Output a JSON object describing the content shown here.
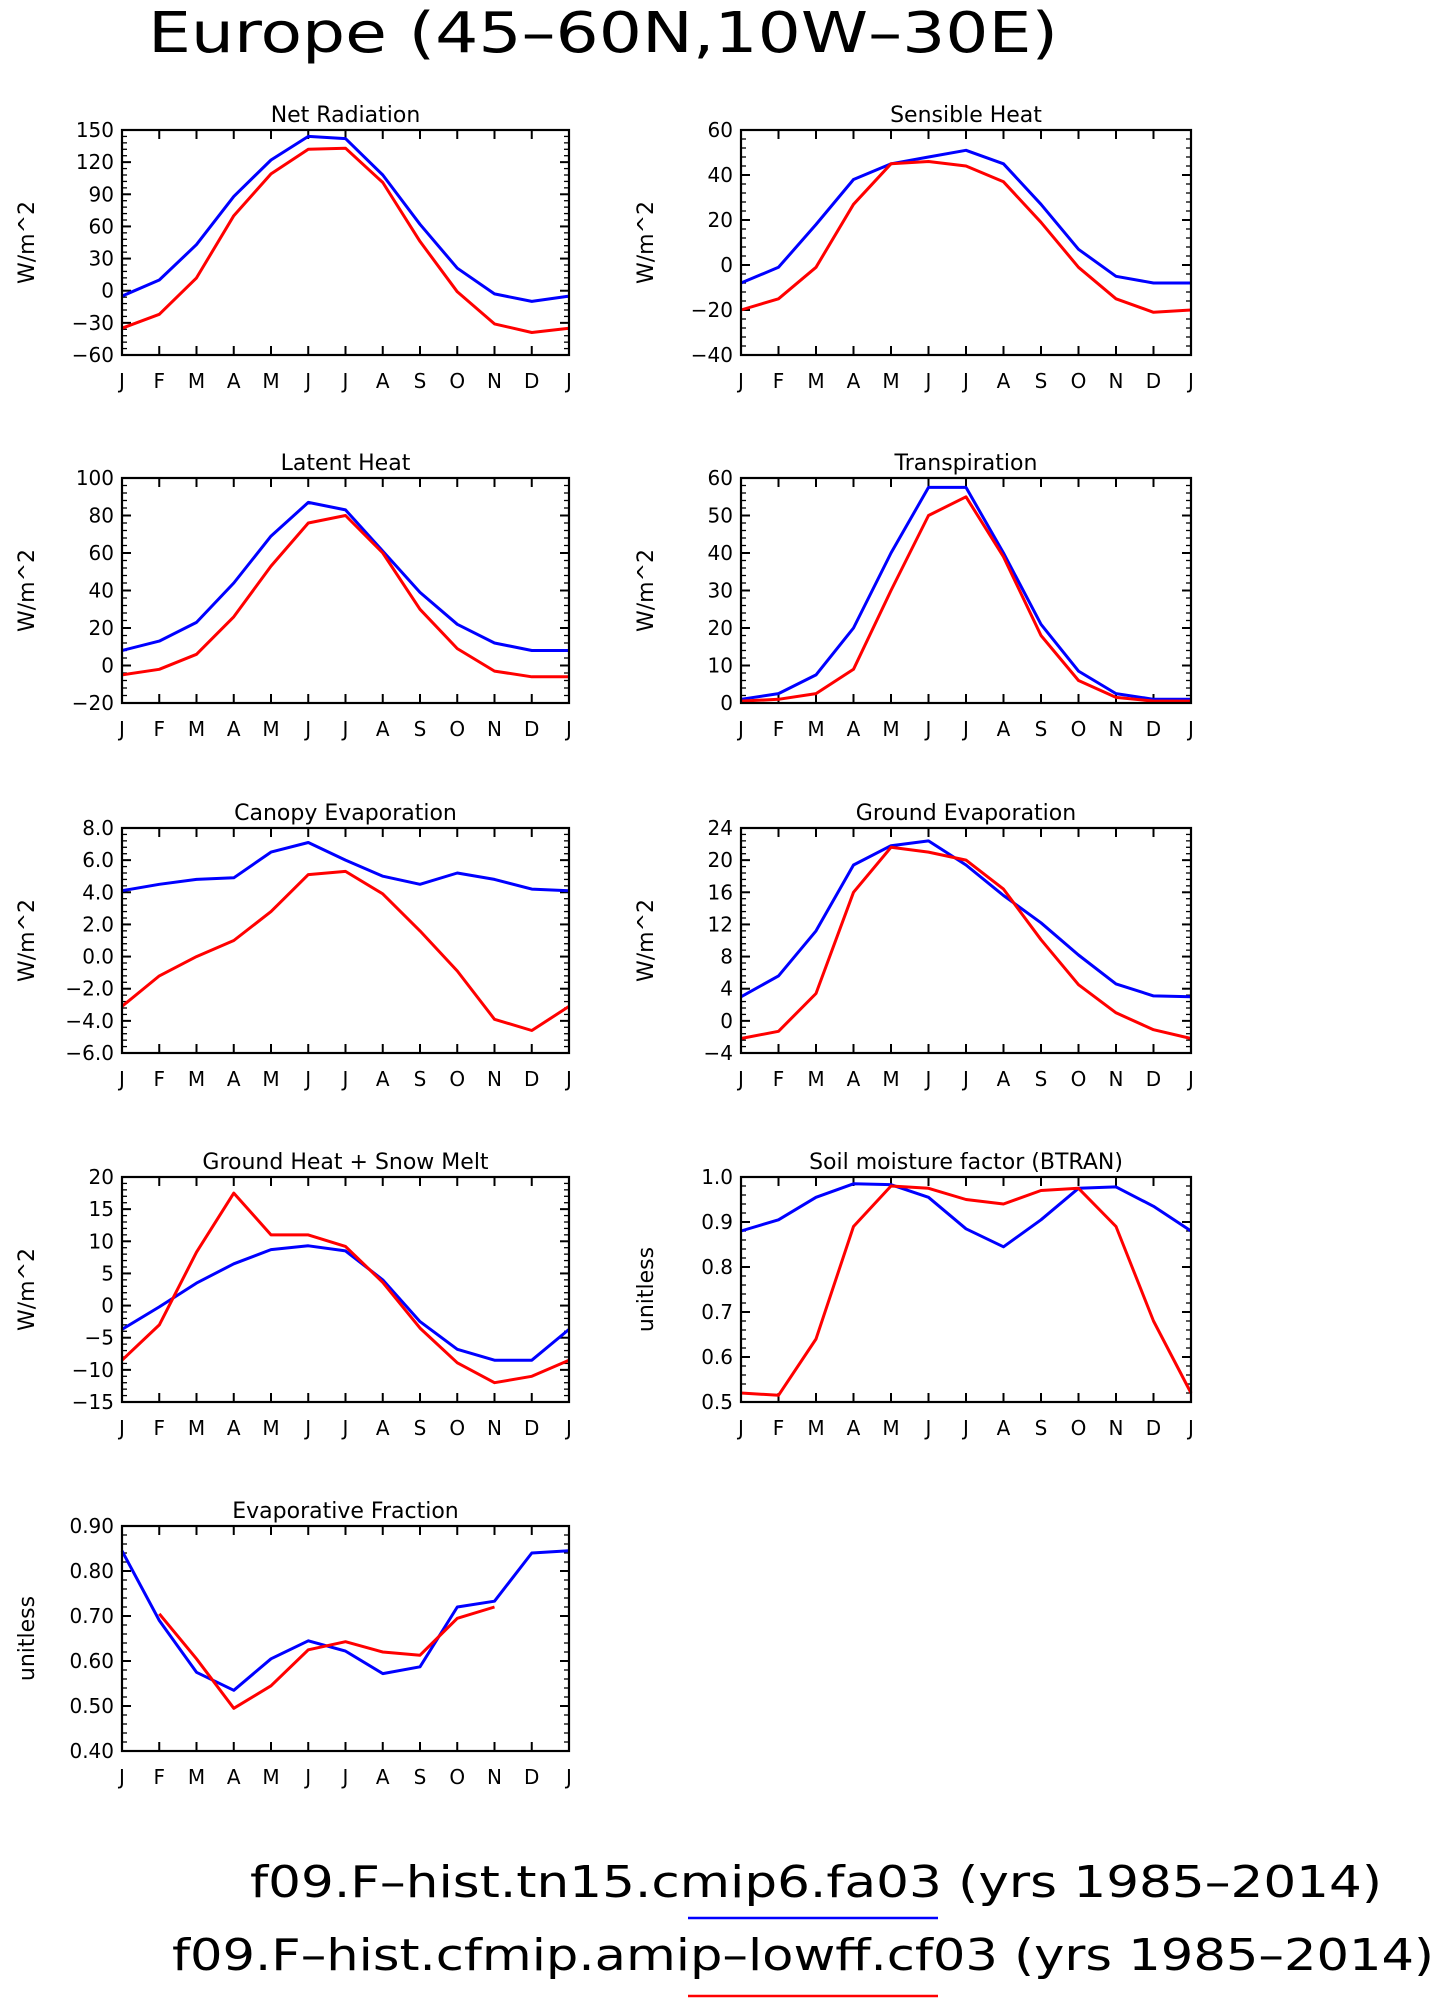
{
  "figure_title": "Europe (45–60N,10W–30E)",
  "months": [
    "J",
    "F",
    "M",
    "A",
    "M",
    "J",
    "J",
    "A",
    "S",
    "O",
    "N",
    "D",
    "J"
  ],
  "legend": [
    {
      "text": "f09.F–hist.tn15.cmip6.fa03 (yrs 1985–2014)",
      "color": "#0000ff"
    },
    {
      "text": "f09.F–hist.cfmip.amip–lowff.cf03 (yrs 1985–2014)",
      "color": "#ff0000"
    }
  ],
  "colors": {
    "blue": "#0000ff",
    "red": "#ff0000"
  },
  "chart_data": [
    {
      "type": "line",
      "title": "Net Radiation",
      "ylabel": "W/m^2",
      "ylim": [
        -60,
        150
      ],
      "yticks": [
        -60,
        -30,
        0,
        30,
        60,
        90,
        120,
        150
      ],
      "ytick_labels": [
        "−60",
        "−30",
        "0",
        "30",
        "60",
        "90",
        "120",
        "150"
      ],
      "series": [
        {
          "color": "#0000ff",
          "values": [
            -5,
            10,
            43,
            88,
            122,
            144,
            142,
            108,
            62,
            21,
            -3,
            -10,
            -5
          ]
        },
        {
          "color": "#ff0000",
          "values": [
            -35,
            -22,
            12,
            70,
            109,
            132,
            133,
            101,
            46,
            -1,
            -31,
            -39,
            -35
          ]
        }
      ]
    },
    {
      "type": "line",
      "title": "Sensible Heat",
      "ylabel": "W/m^2",
      "ylim": [
        -40,
        60
      ],
      "yticks": [
        -40,
        -20,
        0,
        20,
        40,
        60
      ],
      "ytick_labels": [
        "−40",
        "−20",
        "0",
        "20",
        "40",
        "60"
      ],
      "series": [
        {
          "color": "#0000ff",
          "values": [
            -8,
            -1,
            18,
            38,
            45,
            48,
            51,
            45,
            27,
            7,
            -5,
            -8,
            -8
          ]
        },
        {
          "color": "#ff0000",
          "values": [
            -20,
            -15,
            -1,
            27,
            45,
            46,
            44,
            37,
            19,
            -1,
            -15,
            -21,
            -20
          ]
        }
      ]
    },
    {
      "type": "line",
      "title": "Latent Heat",
      "ylabel": "W/m^2",
      "ylim": [
        -20,
        100
      ],
      "yticks": [
        -20,
        0,
        20,
        40,
        60,
        80,
        100
      ],
      "ytick_labels": [
        "−20",
        "0",
        "20",
        "40",
        "60",
        "80",
        "100"
      ],
      "series": [
        {
          "color": "#0000ff",
          "values": [
            8,
            13,
            23,
            44,
            69,
            87,
            83,
            61,
            39,
            22,
            12,
            8,
            8
          ]
        },
        {
          "color": "#ff0000",
          "values": [
            -5,
            -2,
            6,
            26,
            53,
            76,
            80,
            60,
            30,
            9,
            -3,
            -6,
            -6
          ]
        }
      ]
    },
    {
      "type": "line",
      "title": "Transpiration",
      "ylabel": "W/m^2",
      "ylim": [
        0,
        60
      ],
      "yticks": [
        0,
        10,
        20,
        30,
        40,
        50,
        60
      ],
      "ytick_labels": [
        "0",
        "10",
        "20",
        "30",
        "40",
        "50",
        "60"
      ],
      "series": [
        {
          "color": "#0000ff",
          "values": [
            1,
            2.5,
            7.5,
            20,
            40,
            57.5,
            57.5,
            40,
            21,
            8.5,
            2.5,
            1,
            1
          ]
        },
        {
          "color": "#ff0000",
          "values": [
            0.5,
            1,
            2.5,
            9,
            30,
            50,
            55,
            39,
            18,
            6,
            1.5,
            0.5,
            0.5
          ]
        }
      ]
    },
    {
      "type": "line",
      "title": "Canopy Evaporation",
      "ylabel": "W/m^2",
      "ylim": [
        -6,
        8
      ],
      "yticks": [
        -6,
        -4,
        -2,
        0,
        2,
        4,
        6,
        8
      ],
      "ytick_labels": [
        "−6.0",
        "−4.0",
        "−2.0",
        "0.0",
        "2.0",
        "4.0",
        "6.0",
        "8.0"
      ],
      "series": [
        {
          "color": "#0000ff",
          "values": [
            4.1,
            4.5,
            4.8,
            4.9,
            6.5,
            7.1,
            6.0,
            5.0,
            4.5,
            5.2,
            4.8,
            4.2,
            4.1
          ]
        },
        {
          "color": "#ff0000",
          "values": [
            -3.1,
            -1.2,
            0,
            1.0,
            2.8,
            5.1,
            5.3,
            3.9,
            1.6,
            -0.9,
            -3.9,
            -4.6,
            -3.1
          ]
        }
      ]
    },
    {
      "type": "line",
      "title": "Ground Evaporation",
      "ylabel": "W/m^2",
      "ylim": [
        -4,
        24
      ],
      "yticks": [
        -4,
        0,
        4,
        8,
        12,
        16,
        20,
        24
      ],
      "ytick_labels": [
        "−4",
        "0",
        "4",
        "8",
        "12",
        "16",
        "20",
        "24"
      ],
      "series": [
        {
          "color": "#0000ff",
          "values": [
            3,
            5.6,
            11.2,
            19.4,
            21.8,
            22.4,
            19.4,
            15.6,
            12.2,
            8.2,
            4.6,
            3.1,
            3
          ]
        },
        {
          "color": "#ff0000",
          "values": [
            -2.2,
            -1.3,
            3.4,
            16,
            21.6,
            21,
            20,
            16.4,
            10.1,
            4.5,
            1,
            -1.1,
            -2.2
          ]
        }
      ]
    },
    {
      "type": "line",
      "title": "Ground Heat + Snow Melt",
      "ylabel": "W/m^2",
      "ylim": [
        -15,
        20
      ],
      "yticks": [
        -15,
        -10,
        -5,
        0,
        5,
        10,
        15,
        20
      ],
      "ytick_labels": [
        "−15",
        "−10",
        "−5",
        "0",
        "5",
        "10",
        "15",
        "20"
      ],
      "series": [
        {
          "color": "#0000ff",
          "values": [
            -3.7,
            -0.2,
            3.5,
            6.5,
            8.7,
            9.3,
            8.5,
            4,
            -2.5,
            -6.8,
            -8.5,
            -8.5,
            -3.7
          ]
        },
        {
          "color": "#ff0000",
          "values": [
            -8.5,
            -3,
            8.3,
            17.5,
            11,
            11,
            9.2,
            3.6,
            -3.5,
            -8.9,
            -12,
            -11,
            -8.5
          ]
        }
      ]
    },
    {
      "type": "line",
      "title": "Soil moisture factor (BTRAN)",
      "ylabel": "unitless",
      "ylim": [
        0.5,
        1.0
      ],
      "yticks": [
        0.5,
        0.6,
        0.7,
        0.8,
        0.9,
        1.0
      ],
      "ytick_labels": [
        "0.5",
        "0.6",
        "0.7",
        "0.8",
        "0.9",
        "1.0"
      ],
      "series": [
        {
          "color": "#0000ff",
          "values": [
            0.88,
            0.905,
            0.955,
            0.985,
            0.983,
            0.955,
            0.885,
            0.845,
            0.905,
            0.975,
            0.978,
            0.935,
            0.88
          ]
        },
        {
          "color": "#ff0000",
          "values": [
            0.52,
            0.515,
            0.64,
            0.89,
            0.98,
            0.975,
            0.95,
            0.94,
            0.97,
            0.975,
            0.89,
            0.68,
            0.52
          ]
        }
      ]
    },
    {
      "type": "line",
      "title": "Evaporative Fraction",
      "ylabel": "unitless",
      "ylim": [
        0.4,
        0.9
      ],
      "yticks": [
        0.4,
        0.5,
        0.6,
        0.7,
        0.8,
        0.9
      ],
      "ytick_labels": [
        "0.40",
        "0.50",
        "0.60",
        "0.70",
        "0.80",
        "0.90"
      ],
      "series": [
        {
          "color": "#0000ff",
          "values": [
            0.845,
            0.69,
            0.575,
            0.535,
            0.605,
            0.645,
            0.622,
            0.572,
            0.587,
            0.72,
            0.733,
            0.84,
            0.845
          ]
        },
        {
          "color": "#ff0000",
          "values": [
            null,
            0.705,
            0.605,
            0.495,
            0.545,
            0.625,
            0.643,
            0.62,
            0.613,
            0.695,
            0.72,
            null,
            null
          ]
        }
      ]
    }
  ]
}
